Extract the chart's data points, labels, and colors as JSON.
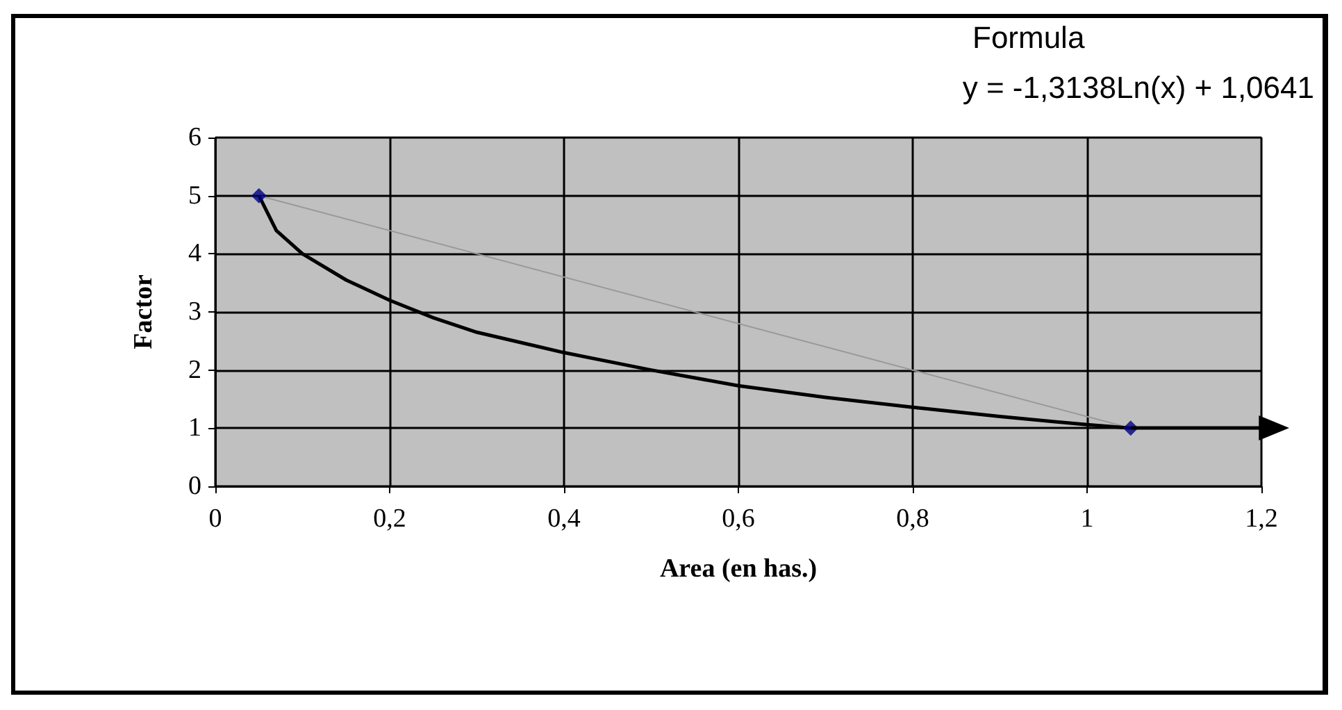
{
  "chart_data": {
    "type": "line",
    "xlabel": "Area (en has.)",
    "ylabel": "Factor",
    "annotations": [
      "Formula",
      "y = -1,3138Ln(x) + 1,0641"
    ],
    "xlim": [
      0,
      1.2
    ],
    "xticks": [
      0,
      {
        "value": 0.2,
        "label": "0,2"
      },
      {
        "value": 0.4,
        "label": "0,4"
      },
      {
        "value": 0.6,
        "label": "0,6"
      },
      {
        "value": 0.8,
        "label": "0,8"
      },
      1,
      {
        "value": 1.2,
        "label": "1,2"
      }
    ],
    "ylim": [
      0,
      6
    ],
    "yticks": [
      0,
      1,
      2,
      3,
      4,
      5,
      6
    ],
    "grid": true,
    "series": [
      {
        "color": "#999999",
        "marker": "none",
        "x": [
          0.05,
          1.05
        ],
        "values": [
          5,
          1
        ]
      },
      {
        "type": "scatter",
        "color": "#000080",
        "marker": "diamond",
        "x": [
          0.05,
          1.05
        ],
        "values": [
          5,
          1
        ]
      },
      {
        "color": "#000000",
        "marker": "none",
        "x": [
          0.05,
          0.07,
          0.1,
          0.15,
          0.2,
          0.25,
          0.3,
          0.4,
          0.5,
          0.6,
          0.7,
          0.8,
          0.9,
          1.0,
          1.05
        ],
        "values": [
          5,
          4.4,
          4.0,
          3.55,
          3.2,
          2.9,
          2.65,
          2.3,
          2.0,
          1.73,
          1.53,
          1.36,
          1.2,
          1.06,
          1.0
        ]
      }
    ]
  }
}
